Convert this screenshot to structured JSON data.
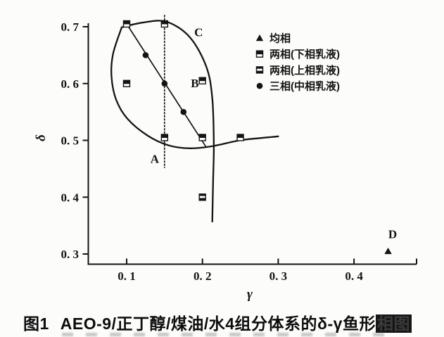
{
  "caption": {
    "prefix": "图1",
    "main": "AEO-9/正丁醇/煤油/水4组分体系的δ-γ鱼形",
    "smudged": "相图"
  },
  "chart_data": {
    "type": "scatter",
    "title": "",
    "xlabel": "γ",
    "ylabel": "δ",
    "xlim": [
      0.05,
      0.48
    ],
    "ylim": [
      0.28,
      0.72
    ],
    "grid": false,
    "legend_position": "upper-right-inside",
    "x_ticks": [
      {
        "v": 0.1,
        "label": "0. 1"
      },
      {
        "v": 0.2,
        "label": "0. 2"
      },
      {
        "v": 0.3,
        "label": "0. 3"
      },
      {
        "v": 0.4,
        "label": "0. 4"
      }
    ],
    "y_ticks": [
      {
        "v": 0.7,
        "label": "0. 7"
      },
      {
        "v": 0.6,
        "label": "0. 6"
      },
      {
        "v": 0.5,
        "label": "0. 5"
      },
      {
        "v": 0.4,
        "label": "0. 4"
      },
      {
        "v": 0.3,
        "label": "0. 3"
      }
    ],
    "legend": [
      {
        "marker": "triangle-filled",
        "label": "均相"
      },
      {
        "marker": "square-top-filled",
        "label": "两相(下相乳液)"
      },
      {
        "marker": "square-striped",
        "label": "两相(上相乳液)"
      },
      {
        "marker": "circle-filled",
        "label": "三相(中相乳液)"
      }
    ],
    "series": [
      {
        "name": "均相",
        "marker": "triangle-filled",
        "points": [
          [
            0.445,
            0.305
          ]
        ]
      },
      {
        "name": "两相(下相乳液)",
        "marker": "square-top-filled",
        "points": [
          [
            0.1,
            0.705
          ],
          [
            0.15,
            0.705
          ],
          [
            0.1,
            0.6
          ],
          [
            0.2,
            0.605
          ],
          [
            0.15,
            0.505
          ],
          [
            0.2,
            0.505
          ],
          [
            0.25,
            0.505
          ]
        ]
      },
      {
        "name": "两相(上相乳液)",
        "marker": "square-striped",
        "points": [
          [
            0.2,
            0.4
          ]
        ]
      },
      {
        "name": "三相(中相乳液)",
        "marker": "circle-filled",
        "points": [
          [
            0.125,
            0.65
          ],
          [
            0.15,
            0.6
          ],
          [
            0.175,
            0.55
          ]
        ]
      }
    ],
    "curves": [
      {
        "name": "fish-body-top-right-boundary",
        "style": "solid",
        "points": [
          [
            0.0935,
            0.699
          ],
          [
            0.12,
            0.707
          ],
          [
            0.152,
            0.709
          ],
          [
            0.183,
            0.682
          ],
          [
            0.205,
            0.63
          ],
          [
            0.213,
            0.574
          ],
          [
            0.215,
            0.491
          ],
          [
            0.214,
            0.425
          ],
          [
            0.213,
            0.357
          ]
        ]
      },
      {
        "name": "fish-body-left-bottom-and-tail",
        "style": "solid",
        "points": [
          [
            0.0935,
            0.699
          ],
          [
            0.082,
            0.652
          ],
          [
            0.08,
            0.612
          ],
          [
            0.086,
            0.572
          ],
          [
            0.101,
            0.538
          ],
          [
            0.128,
            0.508
          ],
          [
            0.156,
            0.491
          ],
          [
            0.184,
            0.486
          ],
          [
            0.214,
            0.49
          ],
          [
            0.249,
            0.5
          ],
          [
            0.276,
            0.504
          ],
          [
            0.3,
            0.507
          ]
        ]
      },
      {
        "name": "three-phase-tie-line",
        "style": "thin",
        "points": [
          [
            0.1,
            0.705
          ],
          [
            0.204,
            0.49
          ]
        ]
      },
      {
        "name": "vertical-guide-line",
        "style": "dotted",
        "points": [
          [
            0.15,
            0.72
          ],
          [
            0.15,
            0.452
          ]
        ]
      }
    ],
    "annotations": [
      {
        "text": "A",
        "x": 0.137,
        "y": 0.468
      },
      {
        "text": "B",
        "x": 0.19,
        "y": 0.601
      },
      {
        "text": "C",
        "x": 0.195,
        "y": 0.691
      },
      {
        "text": "D",
        "x": 0.451,
        "y": 0.335
      }
    ]
  }
}
